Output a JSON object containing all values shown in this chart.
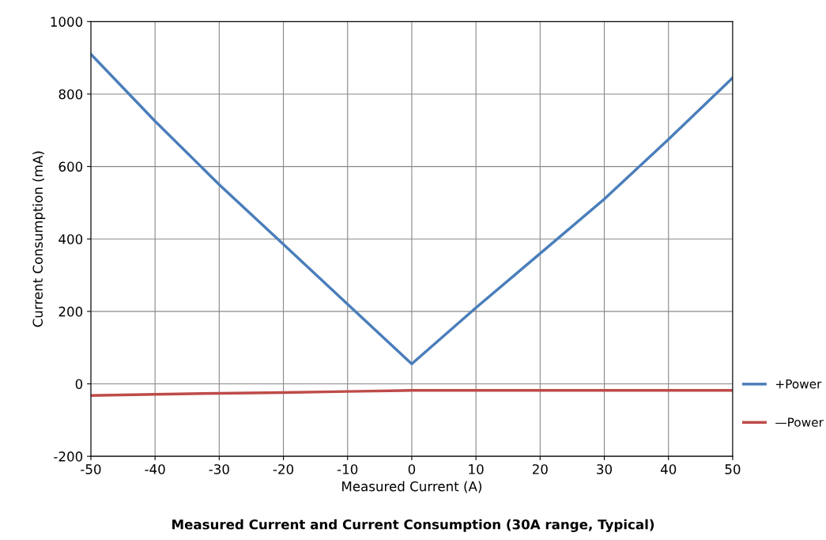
{
  "chart_data": {
    "type": "line",
    "title": "Measured Current and Current Consumption (30A range, Typical)",
    "xlabel": "Measured Current (A)",
    "ylabel": "Current Consumption (mA)",
    "x": [
      -50,
      -40,
      -30,
      -20,
      -10,
      0,
      10,
      20,
      30,
      40,
      50
    ],
    "series": [
      {
        "name": "+Power",
        "color": "#4a7ebb",
        "values": [
          910,
          725,
          550,
          385,
          220,
          55,
          210,
          360,
          510,
          675,
          845
        ]
      },
      {
        "name": "—Power",
        "color": "#be4b48",
        "values": [
          -32,
          -29,
          -26,
          -24,
          -21,
          -18,
          -18,
          -18,
          -18,
          -18,
          -18
        ]
      }
    ],
    "xlim": [
      -50,
      50
    ],
    "xticks": [
      -50,
      -40,
      -30,
      -20,
      -10,
      0,
      10,
      20,
      30,
      40,
      50
    ],
    "ylim": [
      -200,
      1000
    ],
    "yticks": [
      -200,
      0,
      200,
      400,
      600,
      800,
      1000
    ],
    "grid": true,
    "legend": "right",
    "marker": "none",
    "line_style": "solid"
  }
}
